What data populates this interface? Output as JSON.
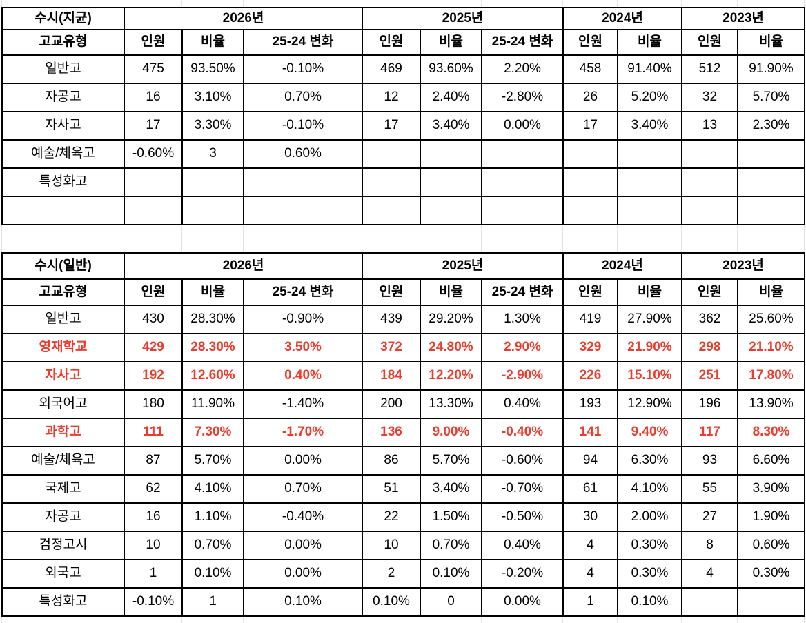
{
  "colors": {
    "text": "#000000",
    "highlight_red": "#ee3a2b",
    "table_border": "#000000",
    "gridline": "#e3e3e3",
    "background": "#ffffff"
  },
  "tables": [
    {
      "title": "수시(지균)",
      "corner_header": "고교유형",
      "year_groups": [
        {
          "label": "2026년",
          "sub_columns": [
            "인원",
            "비율",
            "25-24 변화"
          ]
        },
        {
          "label": "2025년",
          "sub_columns": [
            "인원",
            "비율",
            "25-24 변화"
          ]
        },
        {
          "label": "2024년",
          "sub_columns": [
            "인원",
            "비율"
          ]
        },
        {
          "label": "2023년",
          "sub_columns": [
            "인원",
            "비율"
          ]
        }
      ],
      "rows": [
        {
          "label": "일반고",
          "highlight": false,
          "cells": [
            "475",
            "93.50%",
            "-0.10%",
            "469",
            "93.60%",
            "2.20%",
            "458",
            "91.40%",
            "512",
            "91.90%"
          ]
        },
        {
          "label": "자공고",
          "highlight": false,
          "cells": [
            "16",
            "3.10%",
            "0.70%",
            "12",
            "2.40%",
            "-2.80%",
            "26",
            "5.20%",
            "32",
            "5.70%"
          ]
        },
        {
          "label": "자사고",
          "highlight": false,
          "cells": [
            "17",
            "3.30%",
            "-0.10%",
            "17",
            "3.40%",
            "0.00%",
            "17",
            "3.40%",
            "13",
            "2.30%"
          ]
        },
        {
          "label": "예술/체육고",
          "highlight": false,
          "cells": [
            "-0.60%",
            "3",
            "0.60%",
            "",
            "",
            "",
            "",
            "",
            "",
            ""
          ]
        },
        {
          "label": "특성화고",
          "highlight": false,
          "cells": [
            "",
            "",
            "",
            "",
            "",
            "",
            "",
            "",
            "",
            ""
          ]
        },
        {
          "label": "",
          "highlight": false,
          "cells": [
            "",
            "",
            "",
            "",
            "",
            "",
            "",
            "",
            "",
            ""
          ]
        }
      ]
    },
    {
      "title": "수시(일반)",
      "corner_header": "고교유형",
      "year_groups": [
        {
          "label": "2026년",
          "sub_columns": [
            "인원",
            "비율",
            "25-24 변화"
          ]
        },
        {
          "label": "2025년",
          "sub_columns": [
            "인원",
            "비율",
            "25-24 변화"
          ]
        },
        {
          "label": "2024년",
          "sub_columns": [
            "인원",
            "비율"
          ]
        },
        {
          "label": "2023년",
          "sub_columns": [
            "인원",
            "비율"
          ]
        }
      ],
      "rows": [
        {
          "label": "일반고",
          "highlight": false,
          "cells": [
            "430",
            "28.30%",
            "-0.90%",
            "439",
            "29.20%",
            "1.30%",
            "419",
            "27.90%",
            "362",
            "25.60%"
          ]
        },
        {
          "label": "영재학교",
          "highlight": true,
          "cells": [
            "429",
            "28.30%",
            "3.50%",
            "372",
            "24.80%",
            "2.90%",
            "329",
            "21.90%",
            "298",
            "21.10%"
          ]
        },
        {
          "label": "자사고",
          "highlight": true,
          "cells": [
            "192",
            "12.60%",
            "0.40%",
            "184",
            "12.20%",
            "-2.90%",
            "226",
            "15.10%",
            "251",
            "17.80%"
          ]
        },
        {
          "label": "외국어고",
          "highlight": false,
          "cells": [
            "180",
            "11.90%",
            "-1.40%",
            "200",
            "13.30%",
            "0.40%",
            "193",
            "12.90%",
            "196",
            "13.90%"
          ]
        },
        {
          "label": "과학고",
          "highlight": true,
          "cells": [
            "111",
            "7.30%",
            "-1.70%",
            "136",
            "9.00%",
            "-0.40%",
            "141",
            "9.40%",
            "117",
            "8.30%"
          ]
        },
        {
          "label": "예술/체육고",
          "highlight": false,
          "cells": [
            "87",
            "5.70%",
            "0.00%",
            "86",
            "5.70%",
            "-0.60%",
            "94",
            "6.30%",
            "93",
            "6.60%"
          ]
        },
        {
          "label": "국제고",
          "highlight": false,
          "cells": [
            "62",
            "4.10%",
            "0.70%",
            "51",
            "3.40%",
            "-0.70%",
            "61",
            "4.10%",
            "55",
            "3.90%"
          ]
        },
        {
          "label": "자공고",
          "highlight": false,
          "cells": [
            "16",
            "1.10%",
            "-0.40%",
            "22",
            "1.50%",
            "-0.50%",
            "30",
            "2.00%",
            "27",
            "1.90%"
          ]
        },
        {
          "label": "검정고시",
          "highlight": false,
          "cells": [
            "10",
            "0.70%",
            "0.00%",
            "10",
            "0.70%",
            "0.40%",
            "4",
            "0.30%",
            "8",
            "0.60%"
          ]
        },
        {
          "label": "외국고",
          "highlight": false,
          "cells": [
            "1",
            "0.10%",
            "0.00%",
            "2",
            "0.10%",
            "-0.20%",
            "4",
            "0.30%",
            "4",
            "0.30%"
          ]
        },
        {
          "label": "특성화고",
          "highlight": false,
          "cells": [
            "-0.10%",
            "1",
            "0.10%",
            "0.10%",
            "0",
            "0.00%",
            "1",
            "0.10%",
            "",
            ""
          ]
        }
      ]
    }
  ]
}
